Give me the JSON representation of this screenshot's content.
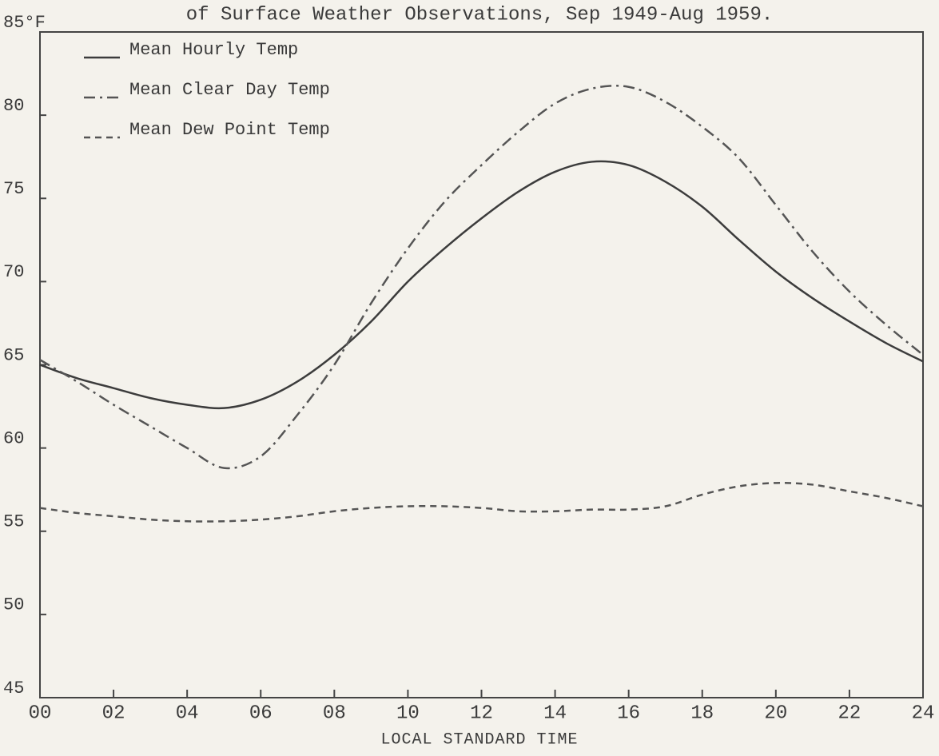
{
  "chart_data": {
    "type": "line",
    "title": "of Surface Weather Observations, Sep 1949-Aug 1959.",
    "x_label": "LOCAL STANDARD TIME",
    "x": [
      0,
      1,
      2,
      3,
      4,
      5,
      6,
      7,
      8,
      9,
      10,
      11,
      12,
      13,
      14,
      15,
      16,
      17,
      18,
      19,
      20,
      21,
      22,
      23,
      24
    ],
    "xlim": [
      0,
      24
    ],
    "xticks": [
      {
        "value": 0,
        "label": "00"
      },
      {
        "value": 2,
        "label": "02"
      },
      {
        "value": 4,
        "label": "04"
      },
      {
        "value": 6,
        "label": "06"
      },
      {
        "value": 8,
        "label": "08"
      },
      10,
      12,
      14,
      16,
      18,
      20,
      22,
      24
    ],
    "ylim": [
      45,
      85
    ],
    "yticks": [
      45,
      50,
      55,
      60,
      65,
      70,
      75,
      80,
      {
        "value": 85,
        "label": "85°F"
      }
    ],
    "legend": "upper left",
    "series": [
      {
        "name": "Mean Hourly Temp",
        "color": "#3c3c3c",
        "dash": "solid",
        "values": [
          65,
          64.2,
          63.6,
          63,
          62.6,
          62.4,
          62.9,
          64,
          65.6,
          67.6,
          70,
          72,
          73.8,
          75.4,
          76.6,
          77.2,
          77,
          76,
          74.5,
          72.5,
          70.6,
          69,
          67.6,
          66.3,
          65.2
        ]
      },
      {
        "name": "Mean Clear Day Temp",
        "color": "#555555",
        "dash": "dashdot",
        "values": [
          65.3,
          64,
          62.6,
          61.3,
          60,
          58.8,
          59.5,
          62,
          65,
          68.7,
          72,
          74.8,
          77,
          79,
          80.7,
          81.6,
          81.7,
          80.8,
          79.3,
          77.4,
          74.6,
          71.8,
          69.4,
          67.4,
          65.6
        ]
      },
      {
        "name": "Mean Dew Point Temp",
        "color": "#555555",
        "dash": "dashed",
        "values": [
          56.4,
          56.1,
          55.9,
          55.7,
          55.6,
          55.6,
          55.7,
          55.9,
          56.2,
          56.4,
          56.5,
          56.5,
          56.4,
          56.2,
          56.2,
          56.3,
          56.3,
          56.5,
          57.2,
          57.7,
          57.9,
          57.8,
          57.4,
          57,
          56.5
        ]
      }
    ]
  }
}
